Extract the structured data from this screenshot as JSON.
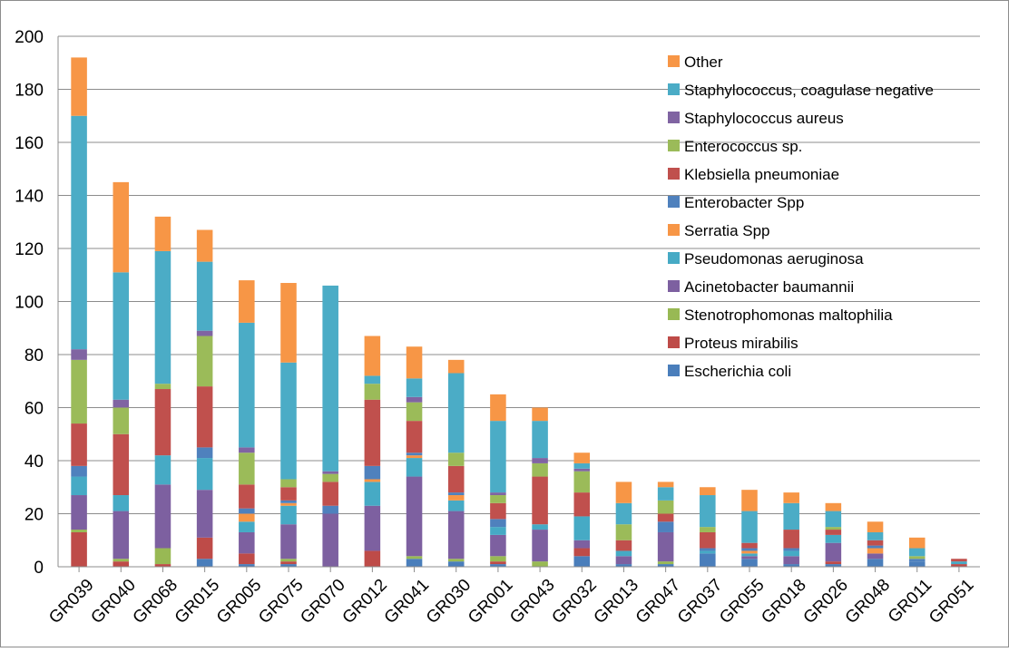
{
  "chart_data": {
    "type": "bar",
    "stacked": true,
    "ylim": [
      0,
      200
    ],
    "yticks": [
      0,
      20,
      40,
      60,
      80,
      100,
      120,
      140,
      160,
      180,
      200
    ],
    "grid": true,
    "legend_position": "top-right",
    "categories": [
      "GR039",
      "GR040",
      "GR068",
      "GR015",
      "GR005",
      "GR075",
      "GR070",
      "GR012",
      "GR041",
      "GR030",
      "GR001",
      "GR043",
      "GR032",
      "GR013",
      "GR047",
      "GR037",
      "GR055",
      "GR018",
      "GR026",
      "GR048",
      "GR011",
      "GR051"
    ],
    "series": [
      {
        "name": "Escherichia coli",
        "color": "#4a7ebb",
        "values": [
          0,
          0,
          0,
          3,
          1,
          1,
          0,
          0,
          3,
          2,
          1,
          0,
          4,
          1,
          1,
          5,
          3,
          1,
          1,
          3,
          2,
          0
        ]
      },
      {
        "name": "Proteus mirabilis",
        "color": "#be4b48",
        "values": [
          13,
          2,
          1,
          8,
          4,
          1,
          0,
          6,
          0,
          0,
          1,
          0,
          3,
          0,
          0,
          0,
          0,
          0,
          1,
          0,
          0,
          1
        ]
      },
      {
        "name": "Stenotrophomonas maltophilia",
        "color": "#98b954",
        "values": [
          1,
          1,
          6,
          0,
          0,
          1,
          0,
          0,
          1,
          1,
          2,
          2,
          0,
          0,
          1,
          0,
          0,
          0,
          0,
          0,
          0,
          0
        ]
      },
      {
        "name": "Acinetobacter baumannii",
        "color": "#7d60a0",
        "values": [
          13,
          18,
          24,
          18,
          8,
          13,
          20,
          17,
          30,
          18,
          8,
          12,
          3,
          3,
          11,
          0,
          1,
          3,
          7,
          2,
          0,
          0
        ]
      },
      {
        "name": "Pseudomonas aeruginosa",
        "color": "#46aac5",
        "values": [
          7,
          6,
          11,
          12,
          4,
          7,
          0,
          9,
          7,
          4,
          3,
          2,
          9,
          2,
          0,
          1,
          1,
          2,
          3,
          0,
          0,
          1
        ]
      },
      {
        "name": "Serratia Spp",
        "color": "#f79646",
        "values": [
          0,
          0,
          0,
          0,
          3,
          1,
          0,
          1,
          1,
          2,
          0,
          0,
          0,
          0,
          0,
          0,
          1,
          0,
          0,
          2,
          0,
          0
        ]
      },
      {
        "name": "Enterobacter Spp",
        "color": "#4f81bd",
        "values": [
          4,
          0,
          0,
          4,
          2,
          1,
          3,
          5,
          1,
          1,
          3,
          0,
          0,
          0,
          4,
          1,
          1,
          1,
          0,
          1,
          1,
          0
        ]
      },
      {
        "name": "Klebsiella pneumoniae",
        "color": "#c0504d",
        "values": [
          16,
          23,
          25,
          23,
          9,
          5,
          9,
          25,
          12,
          10,
          6,
          18,
          9,
          4,
          3,
          6,
          2,
          7,
          2,
          2,
          0,
          1
        ]
      },
      {
        "name": "Enterococcus sp.",
        "color": "#9bbb59",
        "values": [
          24,
          10,
          2,
          19,
          12,
          3,
          3,
          6,
          7,
          5,
          3,
          5,
          8,
          6,
          5,
          2,
          0,
          0,
          1,
          0,
          1,
          0
        ]
      },
      {
        "name": "Staphylococcus aureus",
        "color": "#8064a2",
        "values": [
          4,
          3,
          0,
          2,
          2,
          0,
          1,
          0,
          2,
          0,
          1,
          2,
          1,
          0,
          0,
          0,
          0,
          0,
          0,
          0,
          0,
          0
        ]
      },
      {
        "name": "Staphylococcus, coagulase negative",
        "color": "#4bacc6",
        "values": [
          88,
          48,
          50,
          26,
          47,
          44,
          70,
          3,
          7,
          30,
          27,
          14,
          2,
          8,
          5,
          12,
          12,
          10,
          6,
          3,
          3,
          0
        ]
      },
      {
        "name": "Other",
        "color": "#f79646",
        "values": [
          22,
          34,
          13,
          12,
          16,
          30,
          0,
          15,
          12,
          5,
          10,
          5,
          4,
          8,
          2,
          3,
          8,
          4,
          3,
          4,
          4,
          0
        ]
      }
    ]
  }
}
